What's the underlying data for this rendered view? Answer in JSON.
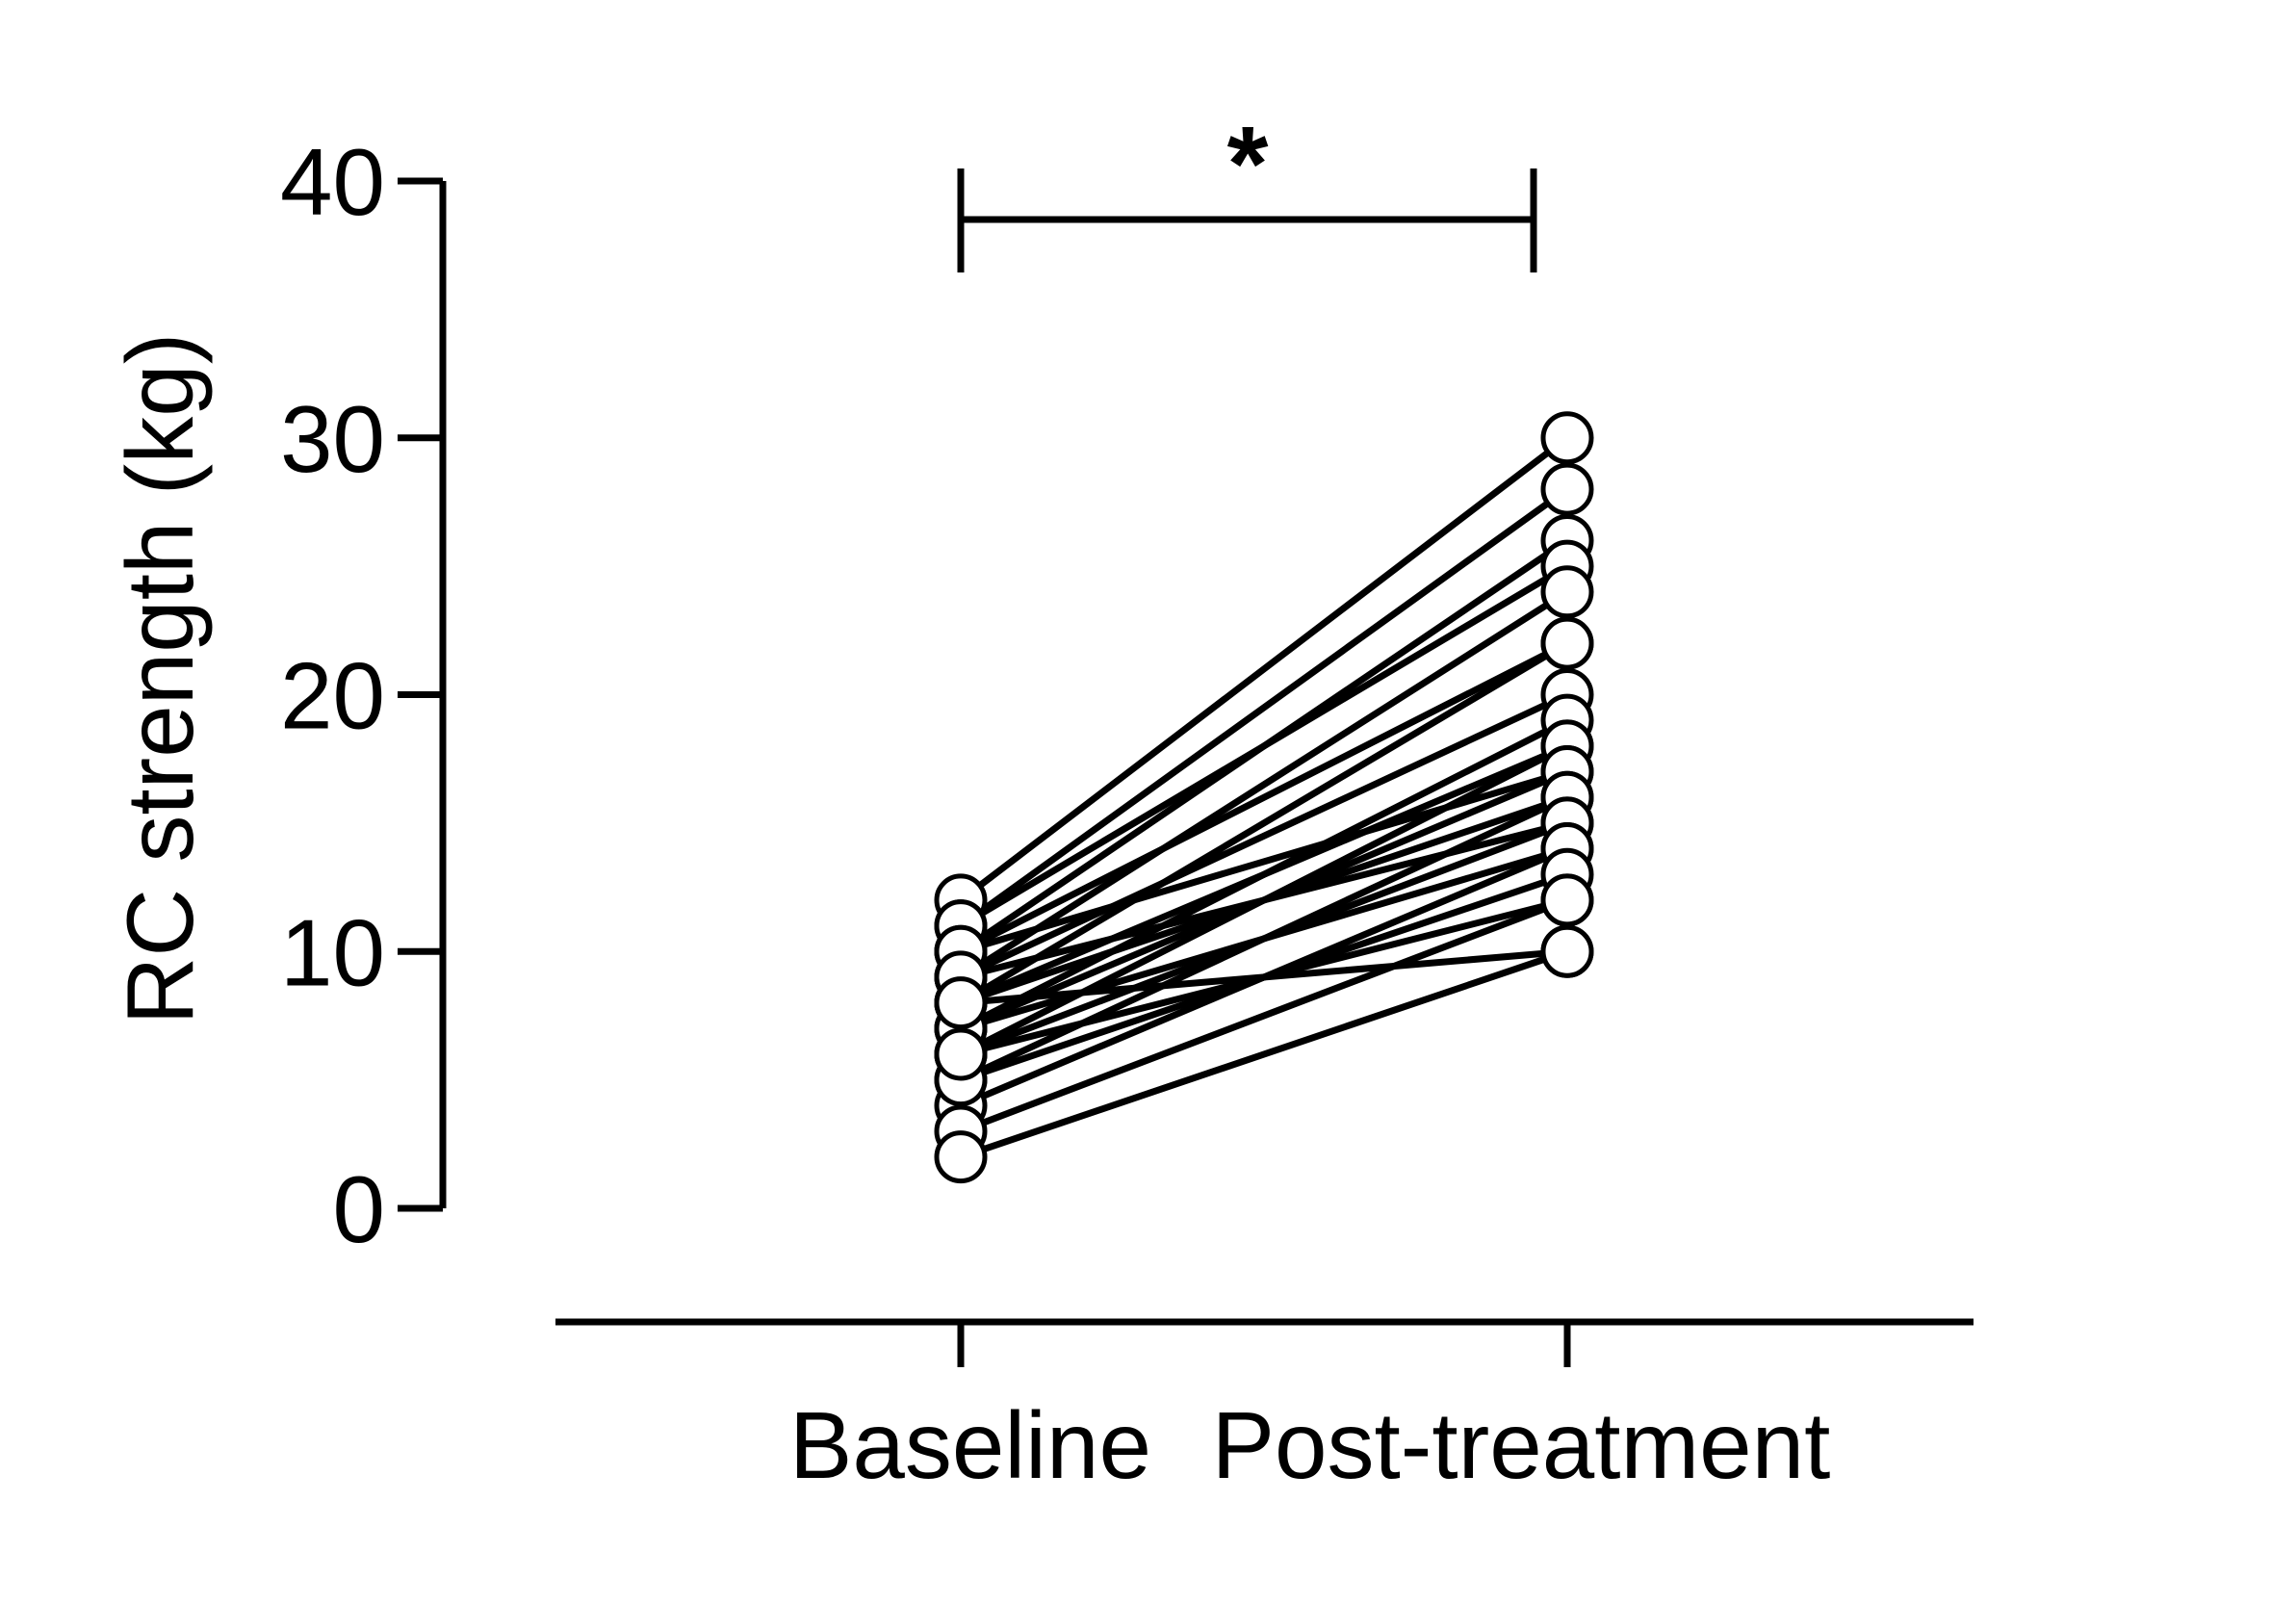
{
  "chart_data": {
    "type": "line",
    "title": "",
    "ylabel": "RC strength (kg)",
    "xlabel": "",
    "categories": [
      "Baseline",
      "Post-treatment"
    ],
    "ylim": [
      0,
      40
    ],
    "yticks": [
      "0",
      "10",
      "20",
      "30",
      "40"
    ],
    "ytick_values": [
      0,
      10,
      20,
      30,
      40
    ],
    "significance": {
      "label": "*",
      "from": "Baseline",
      "to": "Post-treatment"
    },
    "grid": false,
    "legend": "none",
    "colors": {
      "line": "#000000",
      "marker_fill": "#ffffff",
      "marker_stroke": "#000000"
    },
    "series": [
      {
        "values": [
          12,
          30
        ]
      },
      {
        "values": [
          11,
          28
        ]
      },
      {
        "values": [
          10,
          26
        ]
      },
      {
        "values": [
          11,
          25
        ]
      },
      {
        "values": [
          9,
          24
        ]
      },
      {
        "values": [
          10,
          22
        ]
      },
      {
        "values": [
          8,
          22
        ]
      },
      {
        "values": [
          9,
          20
        ]
      },
      {
        "values": [
          7,
          19
        ]
      },
      {
        "values": [
          8,
          18
        ]
      },
      {
        "values": [
          6,
          18
        ]
      },
      {
        "values": [
          10,
          17
        ]
      },
      {
        "values": [
          7,
          17
        ]
      },
      {
        "values": [
          8,
          16
        ]
      },
      {
        "values": [
          5,
          16
        ]
      },
      {
        "values": [
          6,
          15
        ]
      },
      {
        "values": [
          9,
          15
        ]
      },
      {
        "values": [
          4,
          14
        ]
      },
      {
        "values": [
          7,
          14
        ]
      },
      {
        "values": [
          5,
          13
        ]
      },
      {
        "values": [
          3,
          12
        ]
      },
      {
        "values": [
          6,
          12
        ]
      },
      {
        "values": [
          8,
          10
        ]
      },
      {
        "values": [
          2,
          10
        ]
      }
    ]
  }
}
